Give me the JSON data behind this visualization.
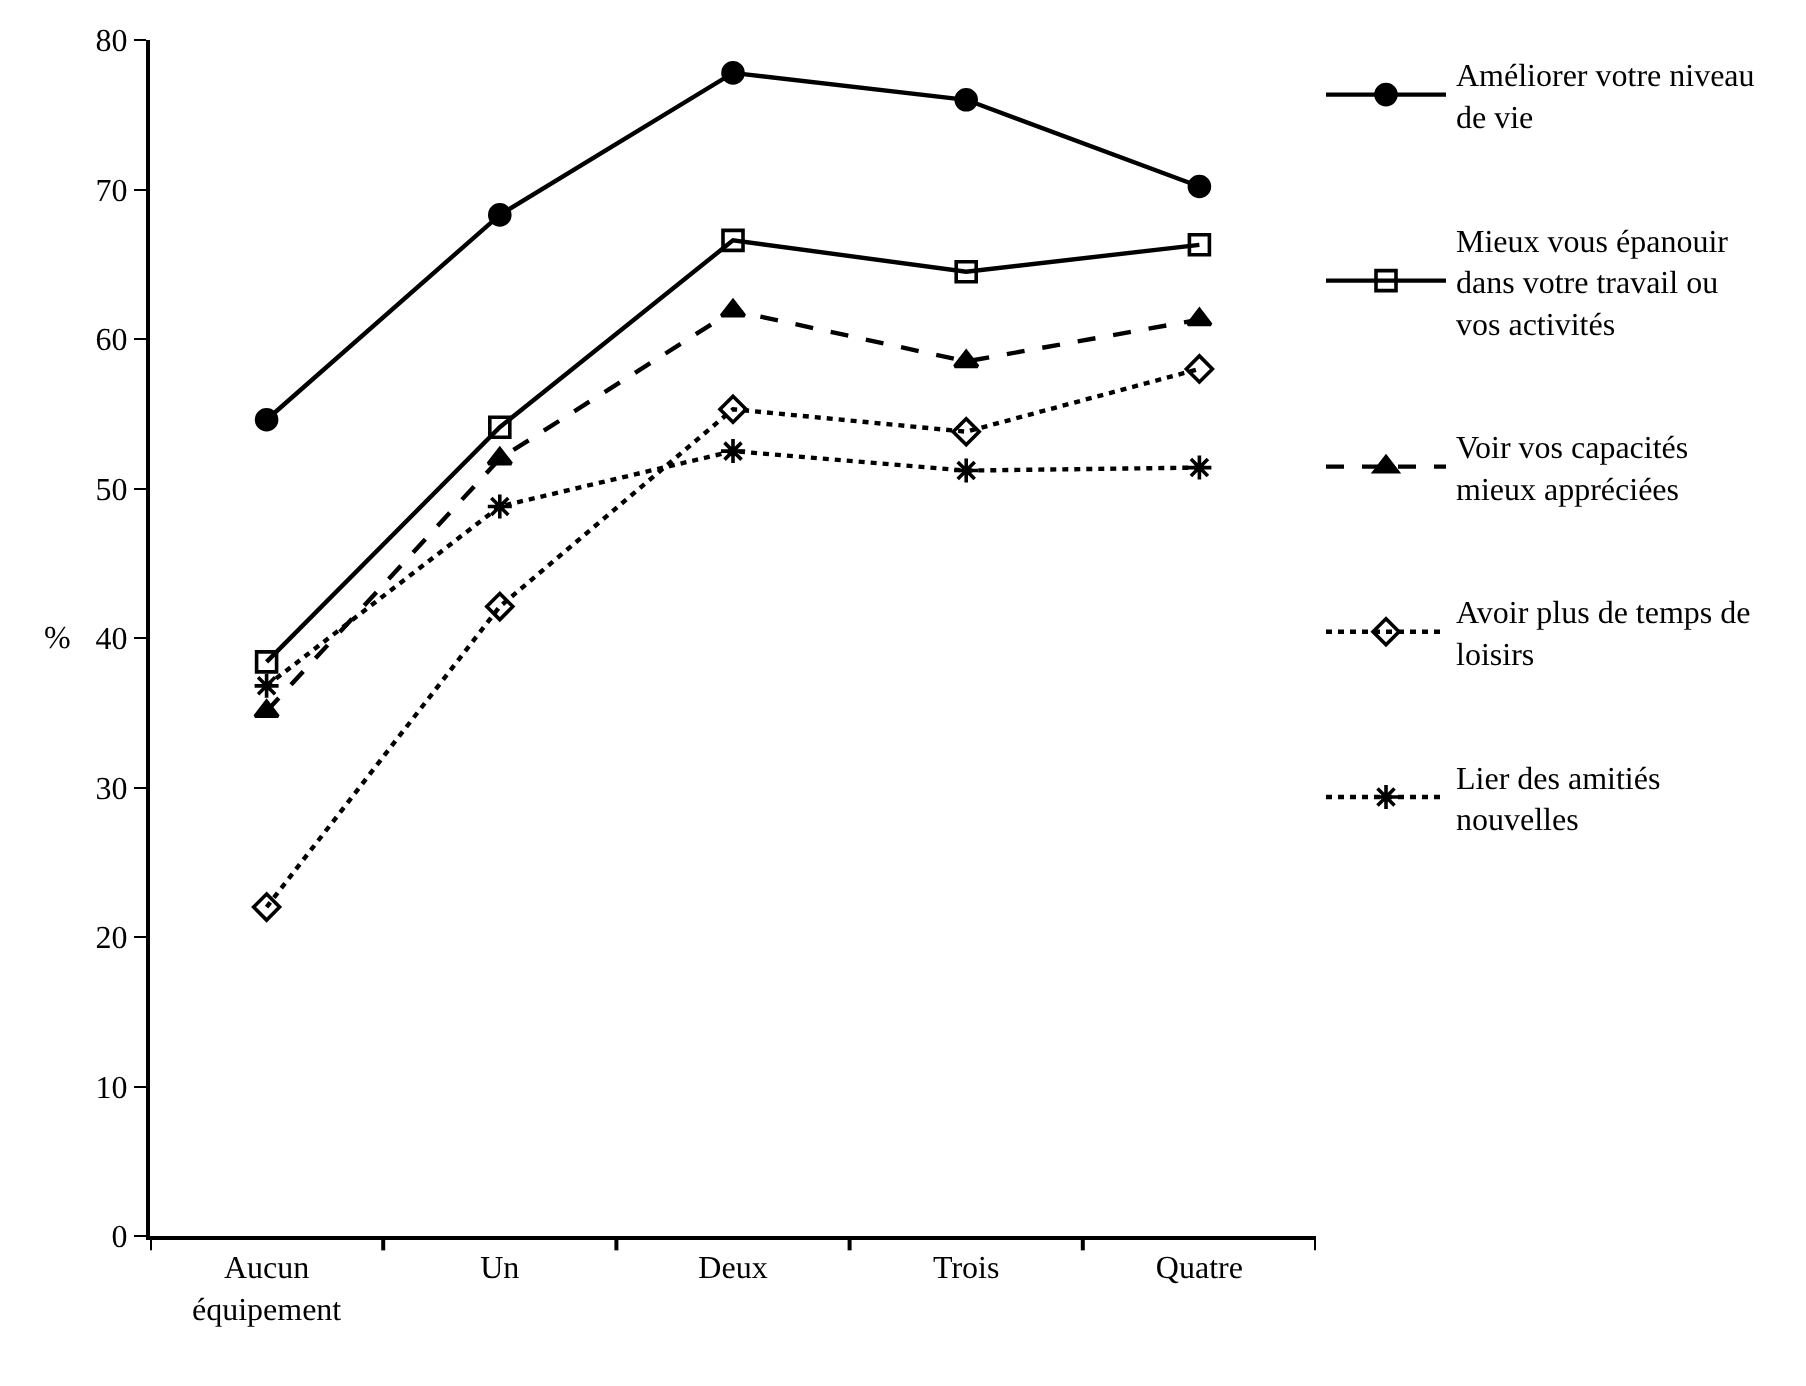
{
  "chart_data": {
    "type": "line",
    "ylabel": "%",
    "categories": [
      "Aucun équipement",
      "Un",
      "Deux",
      "Trois",
      "Quatre"
    ],
    "series": [
      {
        "name": "Améliorer votre niveau de vie",
        "color": "#000000",
        "marker": "circle",
        "line_style": "solid",
        "values": [
          54.6,
          68.3,
          77.8,
          76.0,
          70.2
        ]
      },
      {
        "name": "Mieux vous épanouir dans votre travail ou vos activités",
        "color": "#000000",
        "marker": "square",
        "line_style": "solid",
        "values": [
          38.4,
          54.1,
          66.6,
          64.5,
          66.3
        ]
      },
      {
        "name": "Voir vos capacités mieux appréciées",
        "color": "#000000",
        "marker": "triangle",
        "line_style": "dashed",
        "values": [
          35.1,
          52.0,
          61.9,
          58.5,
          61.3
        ]
      },
      {
        "name": "Avoir plus de temps de loisirs",
        "color": "#000000",
        "marker": "diamond",
        "line_style": "dotted",
        "values": [
          22.0,
          42.1,
          55.3,
          53.8,
          58.0
        ]
      },
      {
        "name": "Lier des amitiés nouvelles",
        "color": "#000000",
        "marker": "cross",
        "line_style": "dotted",
        "values": [
          36.8,
          48.8,
          52.5,
          51.2,
          51.4
        ]
      }
    ],
    "ylim": [
      0,
      80
    ],
    "yticks": [
      0,
      10,
      20,
      30,
      40,
      50,
      60,
      70,
      80
    ],
    "legend": "right"
  }
}
